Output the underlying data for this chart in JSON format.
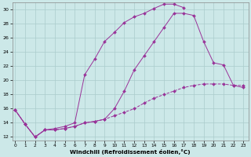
{
  "background_color": "#cce8e8",
  "grid_color": "#aacccc",
  "line_color": "#993399",
  "xlabel": "Windchill (Refroidissement éolien,°C)",
  "ylabel_ticks": [
    12,
    14,
    16,
    18,
    20,
    22,
    24,
    26,
    28,
    30
  ],
  "xticks": [
    0,
    1,
    2,
    3,
    4,
    5,
    6,
    7,
    8,
    9,
    10,
    11,
    12,
    13,
    14,
    15,
    16,
    17,
    18,
    19,
    20,
    21,
    22,
    23
  ],
  "xlim": [
    -0.3,
    23.5
  ],
  "ylim": [
    11.5,
    31.0
  ],
  "c1_x": [
    0,
    1,
    2,
    3,
    4,
    5,
    6,
    7,
    8,
    9,
    10,
    11,
    12,
    13,
    14,
    15,
    16,
    17
  ],
  "c1_y": [
    15.8,
    13.8,
    12.0,
    13.0,
    13.2,
    13.5,
    14.0,
    20.8,
    23.0,
    25.5,
    26.8,
    28.2,
    29.0,
    29.5,
    30.2,
    30.8,
    30.8,
    30.3
  ],
  "c2_x": [
    0,
    1,
    2,
    3,
    4,
    5,
    6,
    7,
    8,
    9,
    10,
    11,
    12,
    13,
    14,
    15,
    16,
    17,
    18,
    19,
    20,
    21,
    22,
    23
  ],
  "c2_y": [
    15.8,
    13.8,
    12.0,
    13.0,
    13.0,
    13.2,
    13.5,
    14.0,
    14.2,
    14.5,
    16.0,
    18.5,
    21.5,
    23.5,
    25.5,
    27.5,
    29.5,
    29.5,
    29.2,
    25.5,
    22.5,
    22.2,
    19.3,
    19.0
  ],
  "c3_x": [
    0,
    1,
    2,
    3,
    4,
    5,
    6,
    7,
    8,
    9,
    10,
    11,
    12,
    13,
    14,
    15,
    16,
    17,
    18,
    19,
    20,
    21,
    22,
    23
  ],
  "c3_y": [
    15.8,
    13.8,
    12.0,
    13.0,
    13.0,
    13.2,
    13.5,
    14.0,
    14.2,
    14.5,
    15.0,
    15.5,
    16.0,
    16.8,
    17.5,
    18.0,
    18.5,
    19.0,
    19.3,
    19.5,
    19.5,
    19.5,
    19.3,
    19.3
  ]
}
